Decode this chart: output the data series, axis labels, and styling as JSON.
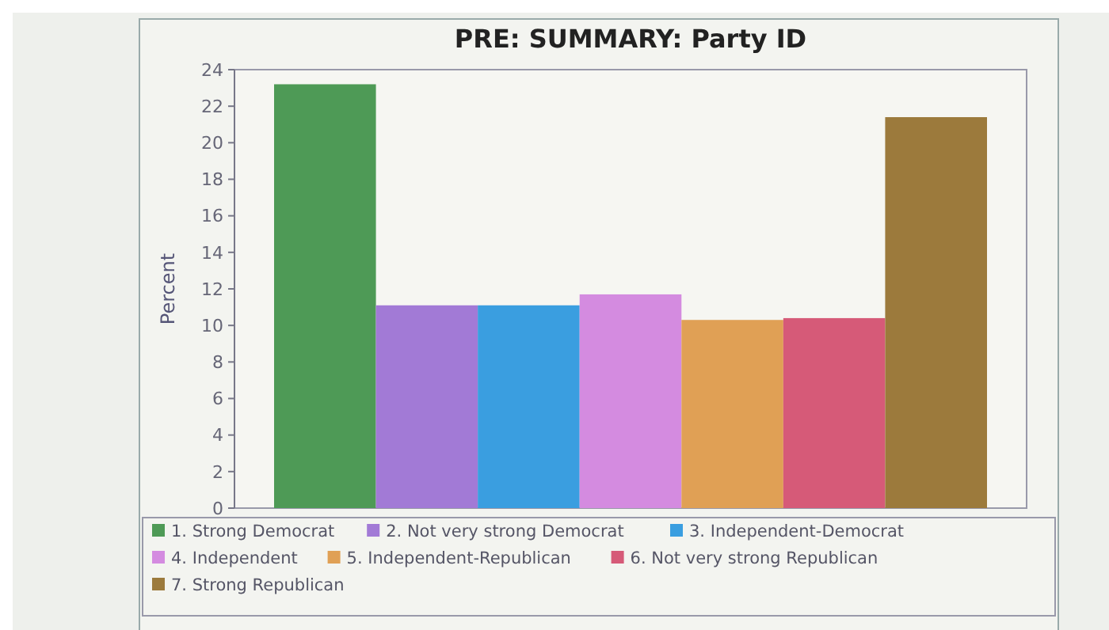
{
  "chart_data": {
    "type": "bar",
    "title": "PRE: SUMMARY: Party ID",
    "ylabel": "Percent",
    "categories": [
      null
    ],
    "series": [
      {
        "name": "1. Strong Democrat",
        "color": "#4e9a56",
        "values": [
          23.2
        ]
      },
      {
        "name": "2. Not very strong Democrat",
        "color": "#a27ad6",
        "values": [
          11.1
        ]
      },
      {
        "name": "3. Independent-Democrat",
        "color": "#3a9ee0",
        "values": [
          11.1
        ]
      },
      {
        "name": "4. Independent",
        "color": "#d48be0",
        "values": [
          11.7
        ]
      },
      {
        "name": "5. Independent-Republican",
        "color": "#e0a055",
        "values": [
          10.3
        ]
      },
      {
        "name": "6. Not very strong Republican",
        "color": "#d65a78",
        "values": [
          10.4
        ]
      },
      {
        "name": "7. Strong Republican",
        "color": "#9c7a3c",
        "values": [
          21.4
        ]
      }
    ],
    "ylim": [
      0,
      24
    ],
    "yticks": [
      0,
      2,
      4,
      6,
      8,
      10,
      12,
      14,
      16,
      18,
      20,
      22,
      24
    ],
    "grid": false,
    "legend": "bottom"
  }
}
